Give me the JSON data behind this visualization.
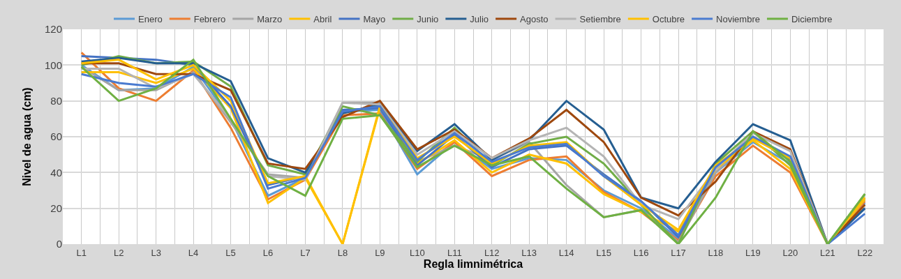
{
  "chart_data": {
    "type": "line",
    "xlabel": "Regla limnimétrica",
    "ylabel": "Nivel de agua (cm)",
    "categories": [
      "L1",
      "L2",
      "L3",
      "L4",
      "L5",
      "L6",
      "L7",
      "L8",
      "L9",
      "L10",
      "L11",
      "L12",
      "L13",
      "L14",
      "L15",
      "L16",
      "L17",
      "L18",
      "L19",
      "L20",
      "L21",
      "L22"
    ],
    "ylim": [
      0,
      120
    ],
    "yticks": [
      0,
      20,
      40,
      60,
      80,
      100,
      120
    ],
    "grid": true,
    "legend": "top",
    "marker": "none",
    "line_style": "solid",
    "series": [
      {
        "name": "Enero",
        "color": "#5b9bd5",
        "values": [
          100,
          86,
          87,
          99,
          70,
          27,
          37,
          74,
          75,
          39,
          57,
          42,
          48,
          47,
          30,
          20,
          3,
          40,
          57,
          45,
          0,
          23
        ]
      },
      {
        "name": "Febrero",
        "color": "#ed7d31",
        "values": [
          107,
          87,
          80,
          97,
          65,
          25,
          36,
          72,
          73,
          42,
          57,
          38,
          47,
          49,
          29,
          18,
          2,
          38,
          55,
          40,
          0,
          24
        ]
      },
      {
        "name": "Marzo",
        "color": "#a5a5a5",
        "values": [
          99,
          86,
          86,
          96,
          68,
          39,
          37,
          79,
          79,
          46,
          55,
          47,
          57,
          33,
          15,
          19,
          1,
          40,
          60,
          47,
          0,
          25
        ]
      },
      {
        "name": "Abril",
        "color": "#ffc000",
        "values": [
          96,
          96,
          90,
          98,
          76,
          23,
          37,
          0,
          76,
          45,
          58,
          40,
          50,
          45,
          28,
          18,
          7,
          42,
          58,
          42,
          0,
          25
        ]
      },
      {
        "name": "Mayo",
        "color": "#4472c4",
        "values": [
          105,
          104,
          103,
          100,
          77,
          33,
          38,
          75,
          76,
          44,
          61,
          43,
          53,
          55,
          39,
          24,
          4,
          43,
          60,
          47,
          0,
          20
        ]
      },
      {
        "name": "Junio",
        "color": "#70ad47",
        "values": [
          100,
          105,
          101,
          102,
          88,
          44,
          39,
          77,
          72,
          46,
          65,
          44,
          56,
          60,
          45,
          22,
          0,
          45,
          63,
          44,
          0,
          28
        ]
      },
      {
        "name": "Julio",
        "color": "#255e91",
        "values": [
          102,
          104,
          101,
          101,
          91,
          48,
          40,
          73,
          78,
          52,
          67,
          47,
          58,
          80,
          64,
          26,
          20,
          46,
          67,
          58,
          0,
          20
        ]
      },
      {
        "name": "Agosto",
        "color": "#9e480e",
        "values": [
          101,
          101,
          95,
          95,
          86,
          45,
          42,
          71,
          80,
          53,
          64,
          48,
          59,
          75,
          57,
          26,
          16,
          35,
          63,
          53,
          0,
          22
        ]
      },
      {
        "name": "Setiembre",
        "color": "#b4b4b4",
        "values": [
          98,
          98,
          87,
          95,
          70,
          38,
          36,
          79,
          78,
          50,
          63,
          48,
          58,
          65,
          49,
          22,
          14,
          42,
          62,
          52,
          0,
          26
        ]
      },
      {
        "name": "Octubre",
        "color": "#ffc000",
        "values": [
          101,
          103,
          92,
          100,
          80,
          34,
          38,
          0,
          77,
          48,
          60,
          45,
          55,
          57,
          38,
          22,
          8,
          44,
          59,
          48,
          0,
          26
        ]
      },
      {
        "name": "Noviembre",
        "color": "#4a7bd0",
        "values": [
          95,
          90,
          88,
          95,
          82,
          31,
          37,
          74,
          77,
          47,
          62,
          46,
          54,
          56,
          38,
          24,
          5,
          43,
          60,
          49,
          0,
          17
        ]
      },
      {
        "name": "Diciembre",
        "color": "#6fb043",
        "values": [
          99,
          80,
          87,
          103,
          70,
          38,
          27,
          70,
          72,
          43,
          55,
          44,
          49,
          31,
          15,
          19,
          0,
          26,
          63,
          46,
          0,
          28
        ]
      }
    ]
  }
}
